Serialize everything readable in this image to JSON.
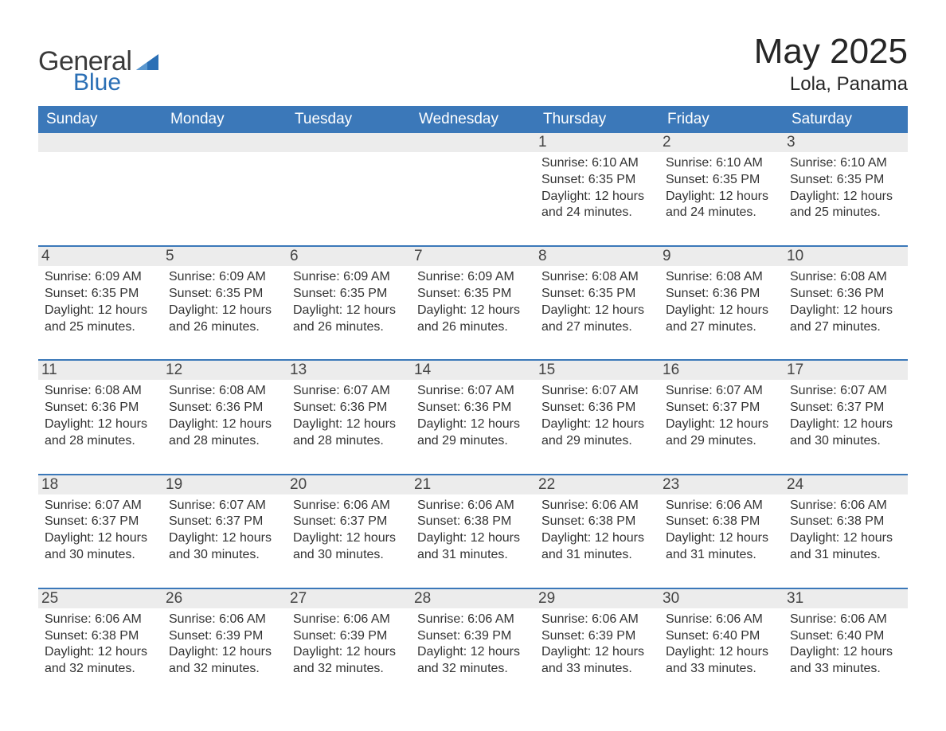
{
  "brand": {
    "general": "General",
    "blue": "Blue"
  },
  "title": "May 2025",
  "location": "Lola, Panama",
  "colors": {
    "header_bg": "#3b78b9",
    "header_text": "#ffffff",
    "daynum_bg": "#ececec",
    "rule": "#3b78b9",
    "text": "#333333",
    "page_bg": "#ffffff",
    "logo_blue": "#2a6fb5"
  },
  "typography": {
    "title_size_pt": 33,
    "location_size_pt": 18,
    "header_size_pt": 14,
    "cell_size_pt": 12
  },
  "weekdays": [
    "Sunday",
    "Monday",
    "Tuesday",
    "Wednesday",
    "Thursday",
    "Friday",
    "Saturday"
  ],
  "weeks": [
    [
      null,
      null,
      null,
      null,
      {
        "n": "1",
        "sr": "6:10 AM",
        "ss": "6:35 PM",
        "dl": "12 hours and 24 minutes."
      },
      {
        "n": "2",
        "sr": "6:10 AM",
        "ss": "6:35 PM",
        "dl": "12 hours and 24 minutes."
      },
      {
        "n": "3",
        "sr": "6:10 AM",
        "ss": "6:35 PM",
        "dl": "12 hours and 25 minutes."
      }
    ],
    [
      {
        "n": "4",
        "sr": "6:09 AM",
        "ss": "6:35 PM",
        "dl": "12 hours and 25 minutes."
      },
      {
        "n": "5",
        "sr": "6:09 AM",
        "ss": "6:35 PM",
        "dl": "12 hours and 26 minutes."
      },
      {
        "n": "6",
        "sr": "6:09 AM",
        "ss": "6:35 PM",
        "dl": "12 hours and 26 minutes."
      },
      {
        "n": "7",
        "sr": "6:09 AM",
        "ss": "6:35 PM",
        "dl": "12 hours and 26 minutes."
      },
      {
        "n": "8",
        "sr": "6:08 AM",
        "ss": "6:35 PM",
        "dl": "12 hours and 27 minutes."
      },
      {
        "n": "9",
        "sr": "6:08 AM",
        "ss": "6:36 PM",
        "dl": "12 hours and 27 minutes."
      },
      {
        "n": "10",
        "sr": "6:08 AM",
        "ss": "6:36 PM",
        "dl": "12 hours and 27 minutes."
      }
    ],
    [
      {
        "n": "11",
        "sr": "6:08 AM",
        "ss": "6:36 PM",
        "dl": "12 hours and 28 minutes."
      },
      {
        "n": "12",
        "sr": "6:08 AM",
        "ss": "6:36 PM",
        "dl": "12 hours and 28 minutes."
      },
      {
        "n": "13",
        "sr": "6:07 AM",
        "ss": "6:36 PM",
        "dl": "12 hours and 28 minutes."
      },
      {
        "n": "14",
        "sr": "6:07 AM",
        "ss": "6:36 PM",
        "dl": "12 hours and 29 minutes."
      },
      {
        "n": "15",
        "sr": "6:07 AM",
        "ss": "6:36 PM",
        "dl": "12 hours and 29 minutes."
      },
      {
        "n": "16",
        "sr": "6:07 AM",
        "ss": "6:37 PM",
        "dl": "12 hours and 29 minutes."
      },
      {
        "n": "17",
        "sr": "6:07 AM",
        "ss": "6:37 PM",
        "dl": "12 hours and 30 minutes."
      }
    ],
    [
      {
        "n": "18",
        "sr": "6:07 AM",
        "ss": "6:37 PM",
        "dl": "12 hours and 30 minutes."
      },
      {
        "n": "19",
        "sr": "6:07 AM",
        "ss": "6:37 PM",
        "dl": "12 hours and 30 minutes."
      },
      {
        "n": "20",
        "sr": "6:06 AM",
        "ss": "6:37 PM",
        "dl": "12 hours and 30 minutes."
      },
      {
        "n": "21",
        "sr": "6:06 AM",
        "ss": "6:38 PM",
        "dl": "12 hours and 31 minutes."
      },
      {
        "n": "22",
        "sr": "6:06 AM",
        "ss": "6:38 PM",
        "dl": "12 hours and 31 minutes."
      },
      {
        "n": "23",
        "sr": "6:06 AM",
        "ss": "6:38 PM",
        "dl": "12 hours and 31 minutes."
      },
      {
        "n": "24",
        "sr": "6:06 AM",
        "ss": "6:38 PM",
        "dl": "12 hours and 31 minutes."
      }
    ],
    [
      {
        "n": "25",
        "sr": "6:06 AM",
        "ss": "6:38 PM",
        "dl": "12 hours and 32 minutes."
      },
      {
        "n": "26",
        "sr": "6:06 AM",
        "ss": "6:39 PM",
        "dl": "12 hours and 32 minutes."
      },
      {
        "n": "27",
        "sr": "6:06 AM",
        "ss": "6:39 PM",
        "dl": "12 hours and 32 minutes."
      },
      {
        "n": "28",
        "sr": "6:06 AM",
        "ss": "6:39 PM",
        "dl": "12 hours and 32 minutes."
      },
      {
        "n": "29",
        "sr": "6:06 AM",
        "ss": "6:39 PM",
        "dl": "12 hours and 33 minutes."
      },
      {
        "n": "30",
        "sr": "6:06 AM",
        "ss": "6:40 PM",
        "dl": "12 hours and 33 minutes."
      },
      {
        "n": "31",
        "sr": "6:06 AM",
        "ss": "6:40 PM",
        "dl": "12 hours and 33 minutes."
      }
    ]
  ],
  "labels": {
    "sunrise": "Sunrise: ",
    "sunset": "Sunset: ",
    "daylight": "Daylight: "
  }
}
